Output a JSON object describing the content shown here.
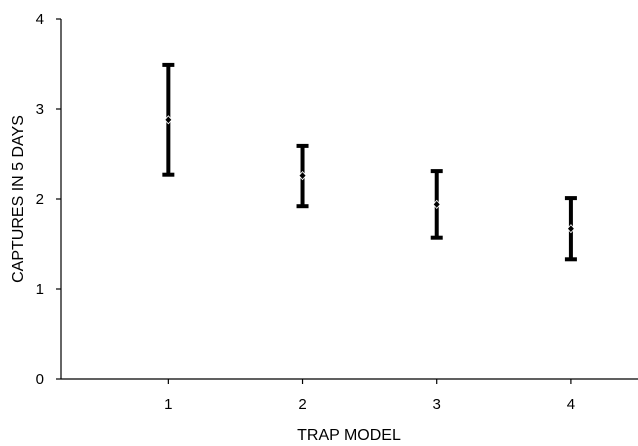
{
  "chart_data": {
    "type": "scatter",
    "title": "",
    "xlabel": "TRAP MODEL",
    "ylabel": "CAPTURES IN 5 DAYS",
    "xlim": [
      0.2,
      4.5
    ],
    "ylim": [
      0,
      4
    ],
    "yticks": [
      0,
      1,
      2,
      3,
      4
    ],
    "categories": [
      "1",
      "2",
      "3",
      "4"
    ],
    "grid": false,
    "points": [
      {
        "x": 1,
        "mean": 2.88,
        "lower": 2.27,
        "upper": 3.49
      },
      {
        "x": 2,
        "mean": 2.26,
        "lower": 1.92,
        "upper": 2.59
      },
      {
        "x": 3,
        "mean": 1.94,
        "lower": 1.57,
        "upper": 2.31
      },
      {
        "x": 4,
        "mean": 1.67,
        "lower": 1.33,
        "upper": 2.01
      }
    ]
  }
}
